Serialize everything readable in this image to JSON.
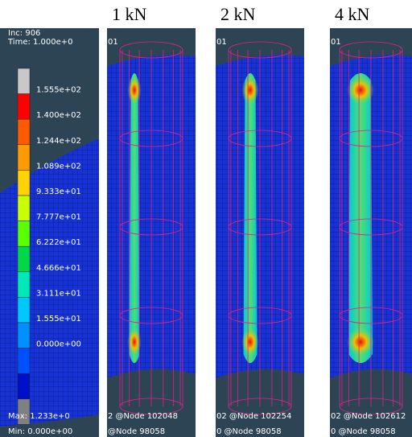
{
  "legend": {
    "header": [
      "Inc:  906",
      "Time:  1.000e+0"
    ],
    "labels": [
      "1.555e+02",
      "1.400e+02",
      "1.244e+02",
      "1.089e+02",
      "9.333e+01",
      "7.777e+01",
      "6.222e+01",
      "4.666e+01",
      "3.111e+01",
      "1.555e+01",
      "0.000e+00"
    ],
    "max": "Max:  1.233e+0",
    "min": "Min:  0.000e+00"
  },
  "panels": [
    {
      "title": "1 kN",
      "top_text": "01",
      "max_text": "2 @Node  102048",
      "min_text": "@Node  98058"
    },
    {
      "title": "2 kN",
      "top_text": "01",
      "max_text": "02 @Node  102254",
      "min_text": "0 @Node  98058"
    },
    {
      "title": "4 kN",
      "top_text": "01",
      "max_text": "02 @Node  102612",
      "min_text": "0 @Node  98058"
    }
  ]
}
